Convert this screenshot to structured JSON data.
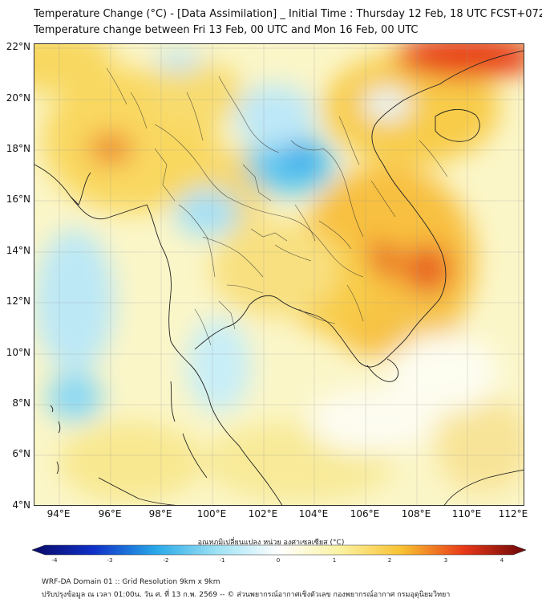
{
  "header": {
    "title_line1": "Temperature Change (°C) - [Data Assimilation] _ Initial Time : Thursday 12 Feb, 18 UTC FCST+072",
    "title_line2": "Temperature change between Fri 13 Feb, 00 UTC and Mon 16 Feb, 00 UTC"
  },
  "map": {
    "lat_labels": [
      "22°N",
      "20°N",
      "18°N",
      "16°N",
      "14°N",
      "12°N",
      "10°N",
      "8°N",
      "6°N",
      "4°N"
    ],
    "lon_labels": [
      "94°E",
      "96°E",
      "98°E",
      "100°E",
      "102°E",
      "104°E",
      "106°E",
      "108°E",
      "110°E",
      "112°E"
    ]
  },
  "colorbar": {
    "title": "อุณหภูมิเปลี่ยนแปลง หน่วย องศาเซลเซียส (°C)",
    "tick_labels": [
      "-4",
      "-3",
      "-2",
      "-1",
      "0",
      "1",
      "2",
      "3",
      "4"
    ],
    "stops": [
      "#0a0a66",
      "#1030c8",
      "#28a8e8",
      "#9ee2f4",
      "#ffffff",
      "#fbf2a0",
      "#f8c030",
      "#e83818",
      "#6a0608"
    ]
  },
  "footer": {
    "line1": "WRF-DA Domain 01 :: Grid Resolution 9km x 9km",
    "line2": "ปรับปรุงข้อมูล ณ เวลา 01:00น. วัน ศ. ที่ 13 ก.พ. 2569 -- © ส่วนพยากรณ์อากาศเชิงตัวเลข กองพยากรณ์อากาศ กรมอุตุนิยมวิทยา"
  }
}
